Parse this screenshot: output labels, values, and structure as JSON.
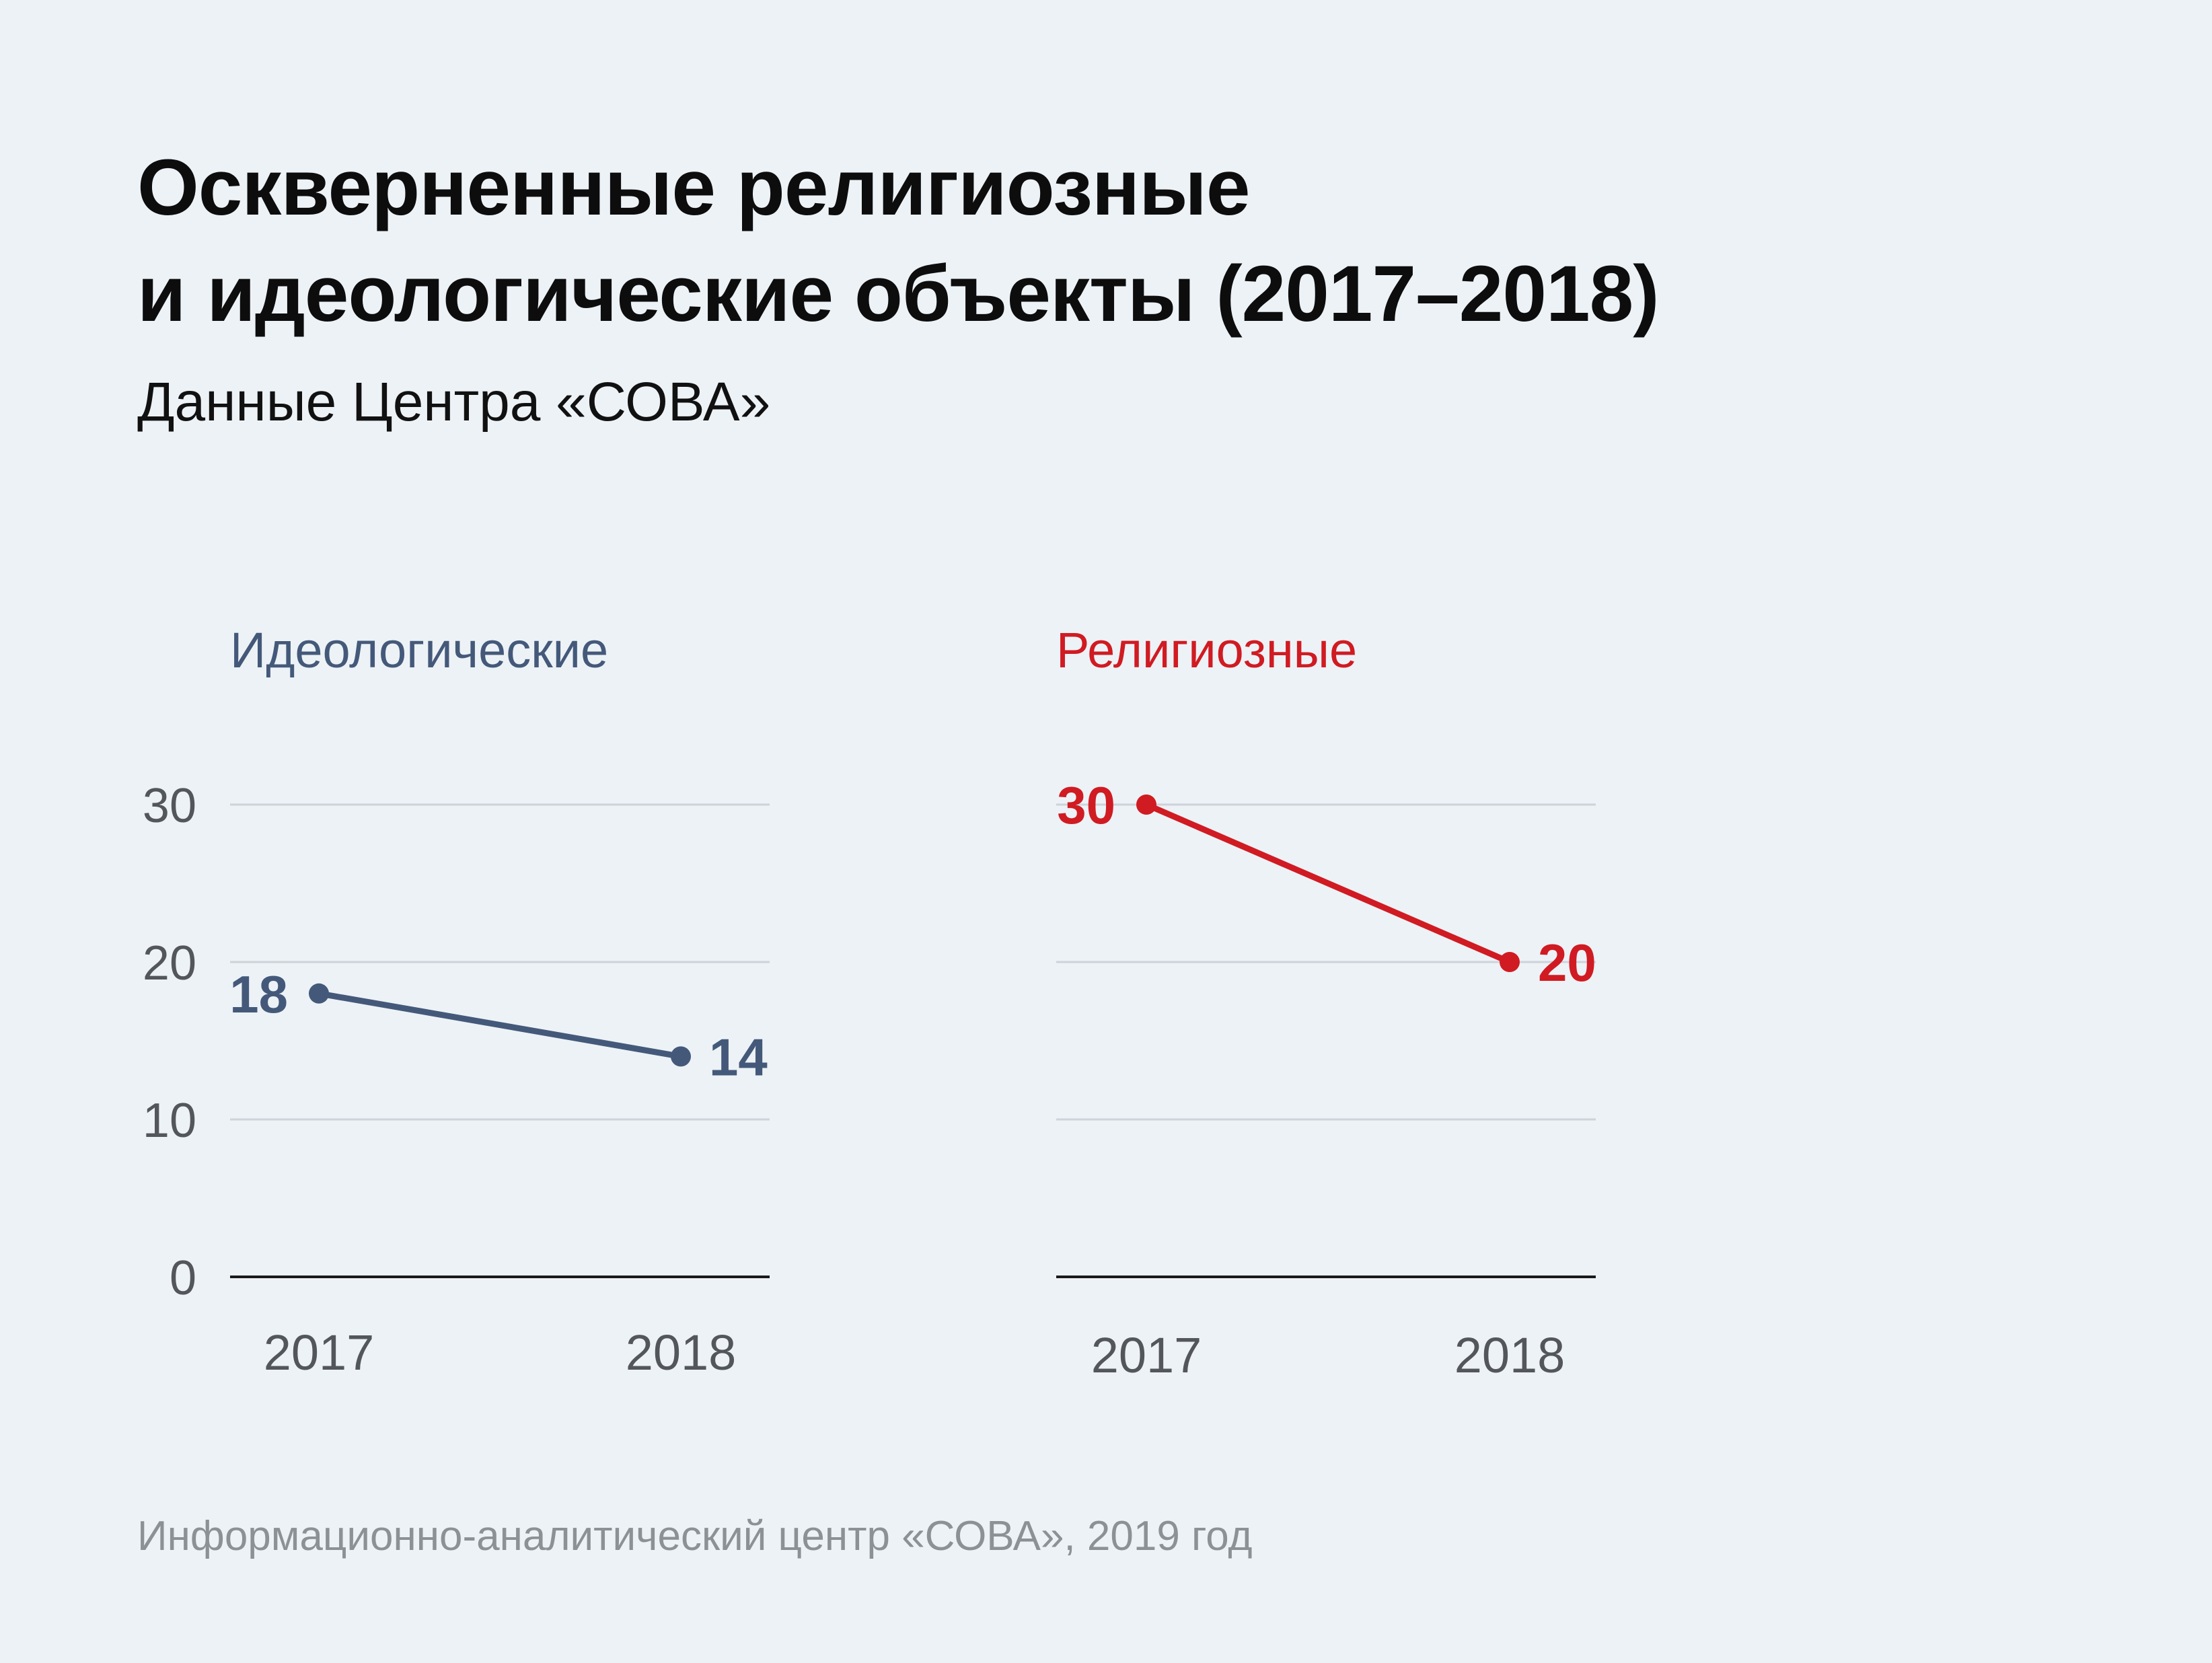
{
  "title_line1": "Оскверненные религиозные",
  "title_line2": "и идеологические объекты (2017–2018)",
  "subtitle": "Данные Центра «СОВА»",
  "footer": "Информационно-аналитический центр «СОВА», 2019 год",
  "chart_data": [
    {
      "type": "line",
      "title": "Идеологические",
      "color": "#44597a",
      "x": [
        "2017",
        "2018"
      ],
      "values": [
        18,
        14
      ],
      "yticks": [
        0,
        10,
        20,
        30
      ],
      "ylim": [
        0,
        30
      ],
      "grid": true,
      "show_y_tick_labels": true
    },
    {
      "type": "line",
      "title": "Религиозные",
      "color": "#d01b22",
      "x": [
        "2017",
        "2018"
      ],
      "values": [
        30,
        20
      ],
      "yticks": [
        0,
        10,
        20,
        30
      ],
      "ylim": [
        0,
        30
      ],
      "grid": true,
      "show_y_tick_labels": false
    }
  ]
}
